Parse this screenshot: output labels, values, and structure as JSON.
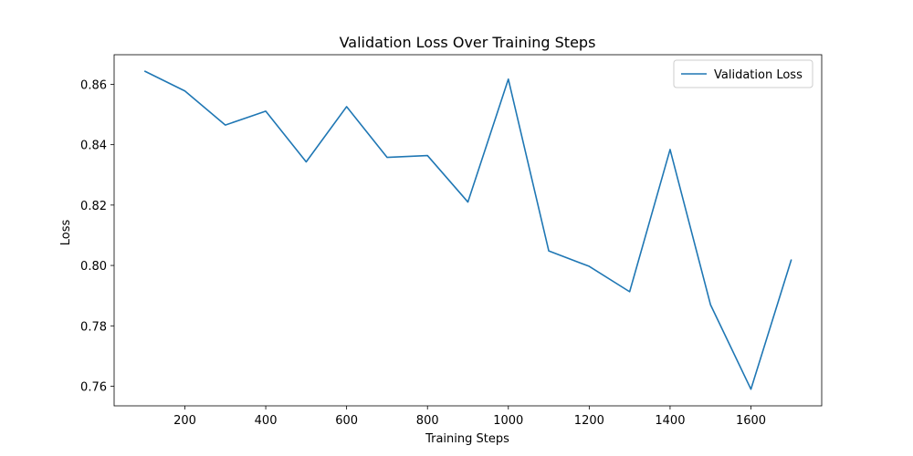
{
  "chart_data": {
    "type": "line",
    "title": "Validation Loss Over Training Steps",
    "xlabel": "Training Steps",
    "ylabel": "Loss",
    "xlim": [
      25,
      1775
    ],
    "ylim": [
      0.7535,
      0.8698
    ],
    "xticks": [
      200,
      400,
      600,
      800,
      1000,
      1200,
      1400,
      1600
    ],
    "yticks": [
      0.76,
      0.78,
      0.8,
      0.82,
      0.84,
      0.86
    ],
    "xtick_labels": [
      "200",
      "400",
      "600",
      "800",
      "1000",
      "1200",
      "1400",
      "1600"
    ],
    "ytick_labels": [
      "0.76",
      "0.78",
      "0.80",
      "0.82",
      "0.84",
      "0.86"
    ],
    "grid": false,
    "legend": {
      "position": "top-right"
    },
    "series": [
      {
        "name": "Validation Loss",
        "color": "#1f77b4",
        "x": [
          100,
          200,
          300,
          400,
          500,
          600,
          700,
          800,
          900,
          1000,
          1100,
          1200,
          1300,
          1400,
          1500,
          1600,
          1700
        ],
        "y": [
          0.8644,
          0.8578,
          0.8465,
          0.8511,
          0.8343,
          0.8526,
          0.8358,
          0.8364,
          0.821,
          0.8617,
          0.8048,
          0.7997,
          0.7913,
          0.8384,
          0.787,
          0.759,
          0.802
        ]
      }
    ]
  }
}
